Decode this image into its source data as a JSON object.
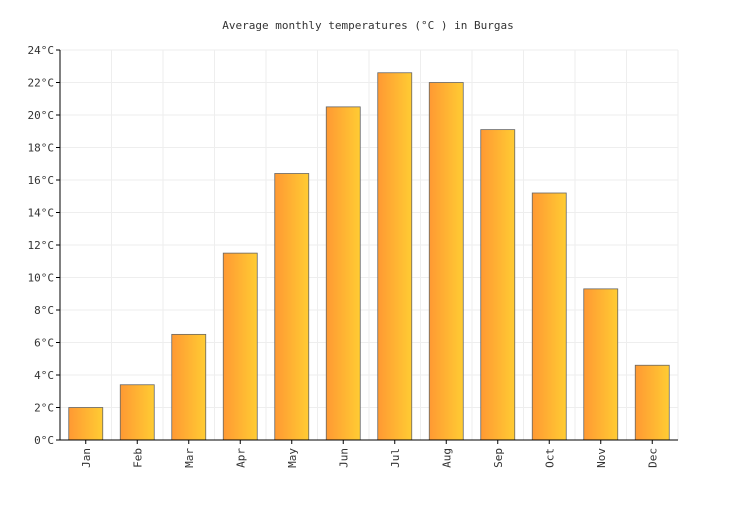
{
  "chart_data": {
    "type": "bar",
    "title": "Average monthly temperatures (°C ) in Burgas",
    "categories": [
      "Jan",
      "Feb",
      "Mar",
      "Apr",
      "May",
      "Jun",
      "Jul",
      "Aug",
      "Sep",
      "Oct",
      "Nov",
      "Dec"
    ],
    "series": [
      {
        "values": [
          2.0,
          3.4,
          6.5,
          11.5,
          16.4,
          20.5,
          22.6,
          22.0,
          19.1,
          15.2,
          9.3,
          4.6
        ]
      }
    ],
    "yticks": [
      "0°C",
      "2°C",
      "4°C",
      "6°C",
      "8°C",
      "10°C",
      "12°C",
      "14°C",
      "16°C",
      "18°C",
      "20°C",
      "22°C",
      "24°C"
    ],
    "ylim": [
      0,
      24
    ],
    "xlabel": "",
    "ylabel": "",
    "grid": true,
    "legend": "none",
    "colors": {
      "bar_light": "#ffcc33",
      "bar_dark": "#ff9933",
      "bar_stroke": "#666666",
      "grid": "#eeeeee",
      "axis": "#000000"
    }
  }
}
